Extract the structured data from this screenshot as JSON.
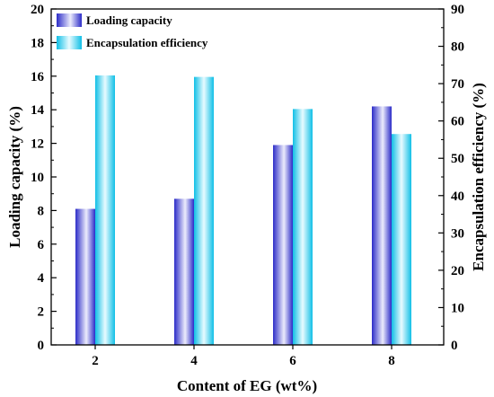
{
  "chart_data": {
    "type": "bar",
    "categories": [
      "2",
      "4",
      "6",
      "8"
    ],
    "xlabel": "Content of EG (wt%)",
    "ylabel": "Loading capacity (%)",
    "y2label": "Encapsulation efficiency (%)",
    "ylim": [
      0,
      20
    ],
    "y2lim": [
      0,
      90
    ],
    "yticks": [
      "0",
      "2",
      "4",
      "6",
      "8",
      "10",
      "12",
      "14",
      "16",
      "18",
      "20"
    ],
    "y2ticks": [
      "0",
      "10",
      "20",
      "30",
      "40",
      "50",
      "60",
      "70",
      "80",
      "90"
    ],
    "legend_position": "top-left",
    "grid": false,
    "series": [
      {
        "name": "Loading capacity",
        "axis": "left",
        "values": [
          8.1,
          8.7,
          11.9,
          14.2
        ],
        "color": "#3a3ad6"
      },
      {
        "name": "Encapsulation efficiency",
        "axis": "right",
        "values": [
          72.2,
          71.8,
          63.2,
          56.5
        ],
        "color": "#1cc4e6"
      }
    ]
  }
}
